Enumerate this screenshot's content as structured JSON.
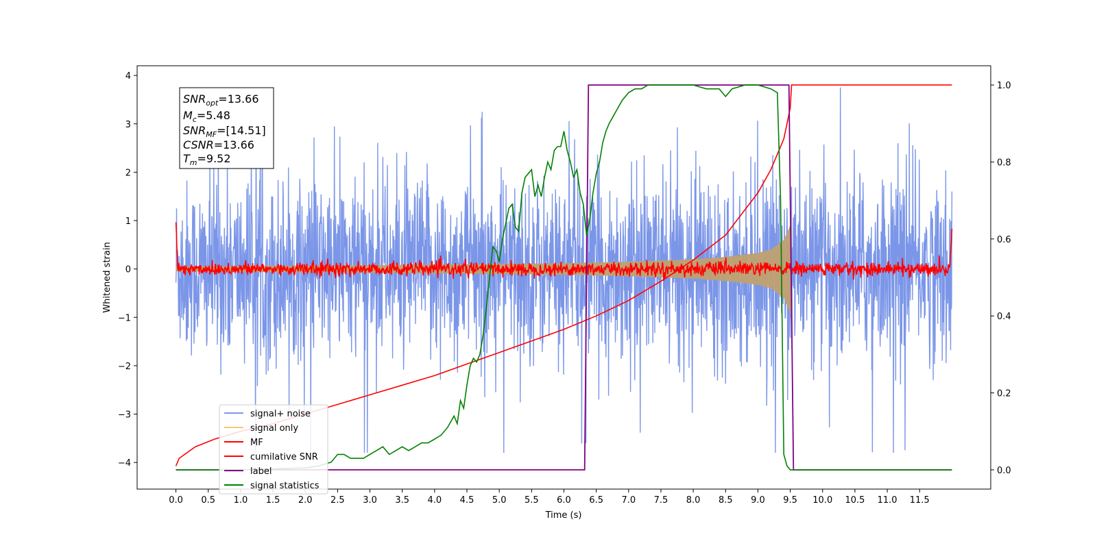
{
  "chart_data": {
    "type": "line",
    "xlabel": "Time (s)",
    "ylabel": "Whitened strain",
    "xlim": [
      -0.6,
      12.6
    ],
    "ylim": [
      -4.55,
      4.2
    ],
    "y2lim": [
      -0.05,
      1.05
    ],
    "x_ticks": [
      "0.0",
      "0.5",
      "1.0",
      "1.5",
      "2.0",
      "2.5",
      "3.0",
      "3.5",
      "4.0",
      "4.5",
      "5.0",
      "5.5",
      "6.0",
      "6.5",
      "7.0",
      "7.5",
      "8.0",
      "8.5",
      "9.0",
      "9.5",
      "10.0",
      "10.5",
      "11.0",
      "11.5"
    ],
    "y_ticks": [
      "−4",
      "−3",
      "−2",
      "−1",
      "0",
      "1",
      "2",
      "3",
      "4"
    ],
    "y2_ticks": [
      "0.0",
      "0.2",
      "0.4",
      "0.6",
      "0.8",
      "1.0"
    ],
    "annotation": {
      "l1": {
        "sym": "SNR",
        "sub": "opt",
        "val": "=13.66"
      },
      "l2": {
        "sym": "M",
        "sub": "c",
        "val": "=5.48"
      },
      "l3": {
        "sym": "SNR",
        "sub": "MF",
        "val": "=[14.51]"
      },
      "l4": {
        "sym": "CSNR",
        "sub": "",
        "val": "=13.66"
      },
      "l5": {
        "sym": "T",
        "sub": "m",
        "val": "=9.52"
      }
    },
    "legend": {
      "placement": "lower-left",
      "entries": [
        {
          "label": "signal+ noise",
          "color": "#7b96e8"
        },
        {
          "label": "signal only",
          "color": "#f5c97a"
        },
        {
          "label": "MF",
          "color": "#ff0000"
        },
        {
          "label": "cumilative SNR",
          "color": "#ff0000"
        },
        {
          "label": "label",
          "color": "#800080"
        },
        {
          "label": "signal statistics",
          "color": "#008000"
        }
      ]
    },
    "series": [
      {
        "name": "signal+ noise",
        "axis": "left",
        "description": "noise band approx ±1.5, peaks to ±3.7",
        "x_range": [
          0.0,
          12.0
        ],
        "amplitude": 1.5
      },
      {
        "name": "signal only",
        "axis": "left",
        "description": "chirp envelope",
        "x": [
          0.0,
          2.0,
          4.0,
          6.0,
          7.0,
          8.0,
          8.5,
          9.0,
          9.2,
          9.4,
          9.5,
          9.52
        ],
        "envelope": [
          0.05,
          0.07,
          0.09,
          0.12,
          0.15,
          0.2,
          0.25,
          0.33,
          0.4,
          0.6,
          0.9,
          1.1
        ]
      },
      {
        "name": "MF",
        "axis": "left",
        "description": "noisy around 0",
        "x_range": [
          0.0,
          12.0
        ],
        "amplitude": 0.08,
        "edge_value": 1.0
      },
      {
        "name": "cumilative SNR",
        "axis": "right",
        "x": [
          0.0,
          0.05,
          0.3,
          0.6,
          1.0,
          1.5,
          2.0,
          2.5,
          3.0,
          3.5,
          4.0,
          4.5,
          5.0,
          5.5,
          6.0,
          6.5,
          7.0,
          7.5,
          8.0,
          8.5,
          9.0,
          9.2,
          9.4,
          9.5,
          9.52,
          12.0
        ],
        "y": [
          0.01,
          0.03,
          0.06,
          0.08,
          0.1,
          0.12,
          0.145,
          0.17,
          0.195,
          0.22,
          0.245,
          0.275,
          0.305,
          0.335,
          0.365,
          0.4,
          0.44,
          0.49,
          0.545,
          0.61,
          0.72,
          0.78,
          0.86,
          0.94,
          1.0,
          1.0
        ]
      },
      {
        "name": "label",
        "axis": "right",
        "x": [
          0.0,
          6.32,
          6.38,
          9.48,
          9.55,
          12.0
        ],
        "y": [
          0.0,
          0.0,
          1.0,
          1.0,
          0.0,
          0.0
        ]
      },
      {
        "name": "signal statistics",
        "axis": "right",
        "x": [
          0.0,
          1.0,
          2.0,
          2.2,
          2.4,
          2.5,
          2.6,
          2.7,
          2.9,
          3.0,
          3.1,
          3.2,
          3.3,
          3.4,
          3.5,
          3.6,
          3.7,
          3.8,
          3.9,
          4.0,
          4.1,
          4.2,
          4.3,
          4.35,
          4.4,
          4.45,
          4.5,
          4.55,
          4.6,
          4.65,
          4.7,
          4.75,
          4.8,
          4.85,
          4.9,
          4.95,
          5.0,
          5.05,
          5.1,
          5.15,
          5.2,
          5.25,
          5.3,
          5.35,
          5.4,
          5.45,
          5.5,
          5.55,
          5.6,
          5.65,
          5.7,
          5.75,
          5.8,
          5.85,
          5.9,
          5.95,
          6.0,
          6.05,
          6.1,
          6.15,
          6.2,
          6.25,
          6.3,
          6.35,
          6.4,
          6.45,
          6.5,
          6.55,
          6.6,
          6.65,
          6.7,
          6.8,
          6.9,
          7.0,
          7.1,
          7.2,
          7.3,
          7.4,
          7.5,
          7.6,
          7.8,
          8.0,
          8.2,
          8.4,
          8.5,
          8.6,
          8.8,
          9.0,
          9.2,
          9.3,
          9.35,
          9.4,
          9.45,
          9.5,
          9.55,
          12.0
        ],
        "y": [
          0.0,
          0.0,
          0.005,
          0.01,
          0.02,
          0.04,
          0.04,
          0.03,
          0.03,
          0.04,
          0.05,
          0.06,
          0.04,
          0.05,
          0.06,
          0.05,
          0.06,
          0.07,
          0.07,
          0.08,
          0.09,
          0.11,
          0.14,
          0.12,
          0.18,
          0.16,
          0.22,
          0.27,
          0.29,
          0.28,
          0.3,
          0.35,
          0.42,
          0.5,
          0.58,
          0.57,
          0.54,
          0.6,
          0.64,
          0.68,
          0.69,
          0.63,
          0.62,
          0.72,
          0.76,
          0.77,
          0.78,
          0.71,
          0.74,
          0.71,
          0.76,
          0.8,
          0.78,
          0.83,
          0.84,
          0.84,
          0.88,
          0.83,
          0.8,
          0.76,
          0.78,
          0.72,
          0.69,
          0.61,
          0.65,
          0.72,
          0.77,
          0.8,
          0.85,
          0.88,
          0.9,
          0.93,
          0.96,
          0.98,
          0.99,
          0.99,
          1.0,
          1.0,
          1.0,
          1.0,
          1.0,
          1.0,
          0.99,
          0.99,
          0.97,
          0.99,
          1.0,
          1.0,
          0.99,
          0.98,
          0.7,
          0.04,
          0.01,
          0.0,
          0.0,
          0.0
        ]
      }
    ]
  }
}
